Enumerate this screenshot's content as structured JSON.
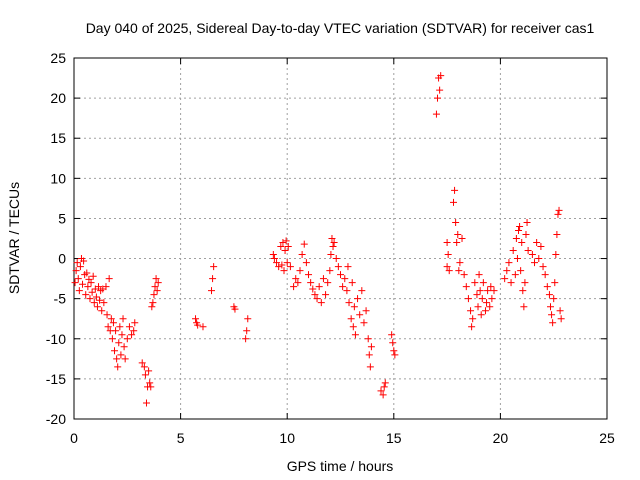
{
  "chart_data": {
    "type": "scatter",
    "title": "Day 040 of 2025, Sidereal Day-to-day VTEC variation (SDTVAR) for receiver cas1",
    "xlabel": "GPS time / hours",
    "ylabel": "SDTVAR / TECUs",
    "xlim": [
      0,
      25
    ],
    "ylim": [
      -20,
      25
    ],
    "xticks": [
      0,
      5,
      10,
      15,
      20,
      25
    ],
    "yticks": [
      -20,
      -15,
      -10,
      -5,
      0,
      5,
      10,
      15,
      20,
      25
    ],
    "xtick_labels": [
      "0",
      "5",
      "10",
      "15",
      "20",
      "25"
    ],
    "ytick_labels": [
      "-20",
      "-15",
      "-10",
      "-5",
      "0",
      "5",
      "10",
      "15",
      "20",
      "25"
    ],
    "grid": true,
    "marker": "+",
    "color": "#ff0000",
    "series": [
      {
        "name": "cas1",
        "points": [
          [
            0.05,
            -3.0
          ],
          [
            0.1,
            -1.5
          ],
          [
            0.15,
            -0.5
          ],
          [
            0.2,
            -2.5
          ],
          [
            0.25,
            -4.0
          ],
          [
            0.3,
            -1.0
          ],
          [
            0.35,
            0.0
          ],
          [
            0.4,
            -3.2
          ],
          [
            0.45,
            -0.3
          ],
          [
            0.5,
            -2.0
          ],
          [
            0.55,
            -4.5
          ],
          [
            0.6,
            -1.8
          ],
          [
            0.65,
            -3.5
          ],
          [
            0.7,
            -2.6
          ],
          [
            0.75,
            -5.0
          ],
          [
            0.8,
            -3.0
          ],
          [
            0.85,
            -4.2
          ],
          [
            0.9,
            -2.2
          ],
          [
            0.95,
            -5.5
          ],
          [
            1.0,
            -3.8
          ],
          [
            1.05,
            -4.8
          ],
          [
            1.1,
            -6.0
          ],
          [
            1.15,
            -3.5
          ],
          [
            1.2,
            -5.2
          ],
          [
            1.25,
            -4.0
          ],
          [
            1.3,
            -6.5
          ],
          [
            1.35,
            -3.8
          ],
          [
            1.4,
            -5.5
          ],
          [
            1.5,
            -3.5
          ],
          [
            1.55,
            -7.0
          ],
          [
            1.6,
            -8.5
          ],
          [
            1.65,
            -2.5
          ],
          [
            1.7,
            -9.0
          ],
          [
            1.75,
            -7.5
          ],
          [
            1.8,
            -10.0
          ],
          [
            1.85,
            -8.0
          ],
          [
            1.9,
            -11.5
          ],
          [
            1.95,
            -9.0
          ],
          [
            2.0,
            -12.5
          ],
          [
            2.05,
            -13.5
          ],
          [
            2.1,
            -10.5
          ],
          [
            2.15,
            -8.5
          ],
          [
            2.2,
            -12.0
          ],
          [
            2.25,
            -9.5
          ],
          [
            2.3,
            -7.5
          ],
          [
            2.35,
            -11.0
          ],
          [
            2.4,
            -12.5
          ],
          [
            2.5,
            -10.0
          ],
          [
            2.6,
            -8.5
          ],
          [
            2.7,
            -9.5
          ],
          [
            2.8,
            -9.0
          ],
          [
            2.85,
            -8.0
          ],
          [
            3.2,
            -13.0
          ],
          [
            3.3,
            -13.5
          ],
          [
            3.35,
            -14.5
          ],
          [
            3.4,
            -18.0
          ],
          [
            3.45,
            -16.0
          ],
          [
            3.5,
            -14.0
          ],
          [
            3.55,
            -15.5
          ],
          [
            3.6,
            -16.0
          ],
          [
            3.65,
            -6.0
          ],
          [
            3.7,
            -5.5
          ],
          [
            3.75,
            -4.5
          ],
          [
            3.8,
            -3.5
          ],
          [
            3.85,
            -2.5
          ],
          [
            3.9,
            -4.0
          ],
          [
            3.95,
            -3.0
          ],
          [
            5.7,
            -7.5
          ],
          [
            5.75,
            -8.0
          ],
          [
            5.8,
            -8.3
          ],
          [
            6.05,
            -8.5
          ],
          [
            6.45,
            -4.0
          ],
          [
            6.5,
            -2.5
          ],
          [
            6.55,
            -1.0
          ],
          [
            7.5,
            -6.0
          ],
          [
            7.55,
            -6.3
          ],
          [
            8.05,
            -10.0
          ],
          [
            8.1,
            -9.0
          ],
          [
            8.15,
            -7.5
          ],
          [
            9.35,
            0.5
          ],
          [
            9.4,
            0.0
          ],
          [
            9.5,
            -0.5
          ],
          [
            9.6,
            -1.0
          ],
          [
            9.7,
            1.5
          ],
          [
            9.75,
            -0.8
          ],
          [
            9.8,
            2.0
          ],
          [
            9.85,
            -1.5
          ],
          [
            9.9,
            1.0
          ],
          [
            9.95,
            2.2
          ],
          [
            10.0,
            -0.5
          ],
          [
            10.05,
            1.5
          ],
          [
            10.15,
            -1.0
          ],
          [
            10.3,
            -3.5
          ],
          [
            10.4,
            -2.5
          ],
          [
            10.5,
            -3.0
          ],
          [
            10.6,
            -1.5
          ],
          [
            10.7,
            0.5
          ],
          [
            10.8,
            1.8
          ],
          [
            10.9,
            -0.5
          ],
          [
            11.0,
            -2.0
          ],
          [
            11.1,
            -3.0
          ],
          [
            11.2,
            -3.8
          ],
          [
            11.3,
            -4.5
          ],
          [
            11.4,
            -5.0
          ],
          [
            11.5,
            -3.5
          ],
          [
            11.6,
            -5.5
          ],
          [
            11.7,
            -2.5
          ],
          [
            11.8,
            -4.5
          ],
          [
            11.9,
            -3.0
          ],
          [
            12.0,
            -1.5
          ],
          [
            12.05,
            0.5
          ],
          [
            12.1,
            2.5
          ],
          [
            12.15,
            1.5
          ],
          [
            12.2,
            2.0
          ],
          [
            12.3,
            0.0
          ],
          [
            12.4,
            -1.0
          ],
          [
            12.5,
            -2.0
          ],
          [
            12.6,
            -3.5
          ],
          [
            12.7,
            -2.5
          ],
          [
            12.8,
            -4.0
          ],
          [
            12.85,
            -1.0
          ],
          [
            12.9,
            -5.5
          ],
          [
            13.0,
            -7.5
          ],
          [
            13.05,
            -3.0
          ],
          [
            13.1,
            -8.5
          ],
          [
            13.15,
            -6.0
          ],
          [
            13.2,
            -9.5
          ],
          [
            13.3,
            -5.0
          ],
          [
            13.4,
            -7.0
          ],
          [
            13.5,
            -4.0
          ],
          [
            13.6,
            -8.0
          ],
          [
            13.7,
            -6.5
          ],
          [
            13.8,
            -10.0
          ],
          [
            13.85,
            -12.0
          ],
          [
            13.9,
            -13.5
          ],
          [
            13.95,
            -11.0
          ],
          [
            14.4,
            -16.5
          ],
          [
            14.5,
            -17.0
          ],
          [
            14.55,
            -16.0
          ],
          [
            14.6,
            -15.5
          ],
          [
            14.9,
            -9.5
          ],
          [
            14.95,
            -10.5
          ],
          [
            15.0,
            -11.5
          ],
          [
            15.05,
            -12.0
          ],
          [
            17.0,
            18.0
          ],
          [
            17.05,
            20.0
          ],
          [
            17.1,
            22.5
          ],
          [
            17.15,
            21.0
          ],
          [
            17.2,
            22.8
          ],
          [
            17.5,
            -1.0
          ],
          [
            17.5,
            2.0
          ],
          [
            17.55,
            0.5
          ],
          [
            17.6,
            -1.5
          ],
          [
            17.8,
            7.0
          ],
          [
            17.85,
            8.5
          ],
          [
            17.9,
            4.5
          ],
          [
            17.95,
            2.0
          ],
          [
            18.0,
            3.0
          ],
          [
            18.05,
            -1.5
          ],
          [
            18.1,
            -0.5
          ],
          [
            18.2,
            2.5
          ],
          [
            18.3,
            -2.0
          ],
          [
            18.4,
            -3.5
          ],
          [
            18.5,
            -5.0
          ],
          [
            18.6,
            -6.5
          ],
          [
            18.65,
            -8.5
          ],
          [
            18.7,
            -7.5
          ],
          [
            18.8,
            -3.0
          ],
          [
            18.9,
            -4.5
          ],
          [
            18.95,
            -6.0
          ],
          [
            19.0,
            -2.0
          ],
          [
            19.05,
            -4.0
          ],
          [
            19.1,
            -7.0
          ],
          [
            19.15,
            -5.0
          ],
          [
            19.2,
            -3.0
          ],
          [
            19.3,
            -6.5
          ],
          [
            19.35,
            -5.5
          ],
          [
            19.4,
            -4.0
          ],
          [
            19.5,
            -6.0
          ],
          [
            19.55,
            -3.5
          ],
          [
            19.6,
            -5.0
          ],
          [
            19.7,
            -4.0
          ],
          [
            20.2,
            -2.5
          ],
          [
            20.3,
            -1.5
          ],
          [
            20.4,
            -0.5
          ],
          [
            20.5,
            -3.0
          ],
          [
            20.6,
            1.0
          ],
          [
            20.7,
            -2.0
          ],
          [
            20.75,
            2.5
          ],
          [
            20.8,
            0.0
          ],
          [
            20.85,
            3.5
          ],
          [
            20.9,
            4.0
          ],
          [
            20.95,
            -1.5
          ],
          [
            21.0,
            2.0
          ],
          [
            21.05,
            -4.0
          ],
          [
            21.1,
            -6.0
          ],
          [
            21.15,
            -3.0
          ],
          [
            21.2,
            3.0
          ],
          [
            21.25,
            4.5
          ],
          [
            21.3,
            1.0
          ],
          [
            21.5,
            0.5
          ],
          [
            21.6,
            -0.5
          ],
          [
            21.7,
            2.0
          ],
          [
            21.8,
            0.0
          ],
          [
            21.9,
            1.5
          ],
          [
            22.0,
            -1.0
          ],
          [
            22.1,
            -2.0
          ],
          [
            22.2,
            -3.5
          ],
          [
            22.3,
            -4.5
          ],
          [
            22.35,
            -6.0
          ],
          [
            22.4,
            -7.0
          ],
          [
            22.45,
            -8.0
          ],
          [
            22.5,
            -5.0
          ],
          [
            22.55,
            -3.0
          ],
          [
            22.6,
            0.5
          ],
          [
            22.65,
            3.0
          ],
          [
            22.7,
            5.5
          ],
          [
            22.75,
            6.0
          ],
          [
            22.8,
            -6.5
          ],
          [
            22.85,
            -7.5
          ]
        ]
      }
    ]
  }
}
